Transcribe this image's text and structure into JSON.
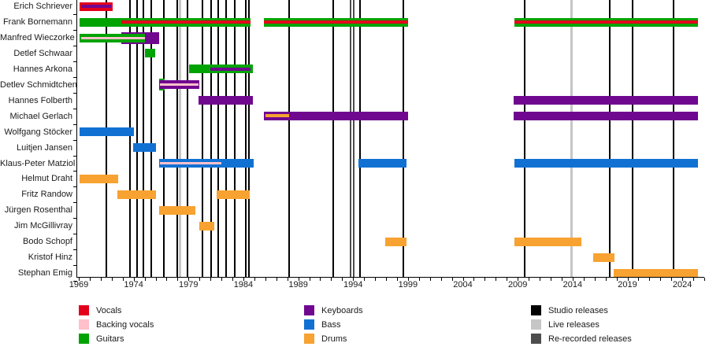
{
  "chart_data": {
    "type": "timeline",
    "subject": "band members timeline",
    "x_axis": {
      "start_year": 1969,
      "end_year": 2026,
      "tick_years": [
        1969,
        1974,
        1979,
        1984,
        1989,
        1994,
        1999,
        2004,
        2009,
        2014,
        2019,
        2024
      ],
      "minor_tick_step": 1
    },
    "colors": {
      "vocals": "#e3001b",
      "backing_vocals": "#ffc0cb",
      "guitars": "#00a302",
      "keyboards": "#70078f",
      "bass": "#1171d3",
      "drums": "#f7a231",
      "studio": "#000000",
      "live": "#c6c6c6",
      "rerecorded": "#4d4d4d"
    },
    "members": [
      {
        "name": "Erich Schriever",
        "layers": [
          {
            "role": "vocals",
            "from": 1969.1,
            "to": 1972.1,
            "stripes": [
              {
                "role": "keyboards",
                "from": 1969.2,
                "to": 1971.95
              }
            ]
          }
        ]
      },
      {
        "name": "Frank Bornemann",
        "layers": [
          {
            "role": "guitars",
            "from": 1969.1,
            "to": 1984.65,
            "stripes": [
              {
                "role": "vocals",
                "from": 1972.9,
                "to": 1984.65
              }
            ]
          },
          {
            "role": "guitars",
            "from": 1985.9,
            "to": 1999.0,
            "stripes": [
              {
                "role": "vocals",
                "from": 1985.9,
                "to": 1999.0
              }
            ]
          },
          {
            "role": "guitars",
            "from": 2008.7,
            "to": 2025.4,
            "stripes": [
              {
                "role": "vocals",
                "from": 2008.7,
                "to": 2025.4
              }
            ]
          }
        ]
      },
      {
        "name": "Manfred Wieczorke",
        "layers": [
          {
            "role": "keyboards",
            "from": 1972.9,
            "to": 1976.35,
            "tall": true
          },
          {
            "role": "guitars",
            "from": 1969.1,
            "to": 1975.05,
            "stripes": [
              {
                "role": "backing_vocals",
                "from": 1969.2,
                "to": 1975.0
              }
            ]
          }
        ]
      },
      {
        "name": "Detlef Schwaar",
        "layers": [
          {
            "role": "guitars",
            "from": 1975.05,
            "to": 1976.0
          }
        ]
      },
      {
        "name": "Hannes Arkona",
        "layers": [
          {
            "role": "guitars",
            "from": 1979.05,
            "to": 1984.85,
            "stripes": [
              {
                "role": "keyboards",
                "from": 1981.0,
                "to": 1984.65
              }
            ]
          }
        ]
      },
      {
        "name": "Detlev Schmidtchen",
        "layers": [
          {
            "role": "guitars",
            "from": 1976.3,
            "to": 1976.85,
            "tall": true
          },
          {
            "role": "keyboards",
            "from": 1976.3,
            "to": 1979.95,
            "stripes": [
              {
                "role": "backing_vocals",
                "from": 1976.4,
                "to": 1979.9
              }
            ]
          }
        ]
      },
      {
        "name": "Hannes Folberth",
        "layers": [
          {
            "role": "keyboards",
            "from": 1979.9,
            "to": 1984.85
          },
          {
            "role": "keyboards",
            "from": 2008.65,
            "to": 2025.45
          }
        ]
      },
      {
        "name": "Michael Gerlach",
        "layers": [
          {
            "role": "keyboards",
            "from": 1985.9,
            "to": 1999.0,
            "stripes": [
              {
                "role": "drums",
                "from": 1986.0,
                "to": 1988.2,
                "dy": -1
              }
            ]
          },
          {
            "role": "keyboards",
            "from": 2008.65,
            "to": 2025.45
          }
        ]
      },
      {
        "name": "Wolfgang Stöcker",
        "layers": [
          {
            "role": "bass",
            "from": 1969.1,
            "to": 1974.05
          }
        ]
      },
      {
        "name": "Luitjen Jansen",
        "layers": [
          {
            "role": "bass",
            "from": 1973.95,
            "to": 1976.0
          }
        ]
      },
      {
        "name": "Klaus-Peter Matziol",
        "layers": [
          {
            "role": "bass",
            "from": 1976.3,
            "to": 1984.95,
            "stripes": [
              {
                "role": "backing_vocals",
                "from": 1976.4,
                "to": 1982.0
              }
            ]
          },
          {
            "role": "bass",
            "from": 1994.5,
            "to": 1998.85
          },
          {
            "role": "bass",
            "from": 2008.7,
            "to": 2025.45
          }
        ]
      },
      {
        "name": "Helmut Draht",
        "layers": [
          {
            "role": "drums",
            "from": 1969.1,
            "to": 1972.6
          }
        ]
      },
      {
        "name": "Fritz Randow",
        "layers": [
          {
            "role": "drums",
            "from": 1972.5,
            "to": 1976.0
          },
          {
            "role": "drums",
            "from": 1981.55,
            "to": 1984.6
          }
        ]
      },
      {
        "name": "Jürgen Rosenthal",
        "layers": [
          {
            "role": "drums",
            "from": 1976.3,
            "to": 1979.65
          }
        ]
      },
      {
        "name": "Jim McGillivray",
        "layers": [
          {
            "role": "drums",
            "from": 1980.0,
            "to": 1981.35
          }
        ]
      },
      {
        "name": "Bodo Schopf",
        "layers": [
          {
            "role": "drums",
            "from": 1996.95,
            "to": 1998.85
          },
          {
            "role": "drums",
            "from": 2008.7,
            "to": 2014.8
          }
        ]
      },
      {
        "name": "Kristof Hinz",
        "layers": [
          {
            "role": "drums",
            "from": 2015.85,
            "to": 2017.8
          }
        ]
      },
      {
        "name": "Stephan Emig",
        "layers": [
          {
            "role": "drums",
            "from": 2017.75,
            "to": 2025.45
          }
        ]
      }
    ],
    "releases": {
      "studio": [
        1971.5,
        1973.7,
        1974.3,
        1974.9,
        1975.6,
        1976.75,
        1977.95,
        1978.9,
        1980.3,
        1981.05,
        1981.7,
        1982.4,
        1983.2,
        1984.2,
        1984.5,
        1988.2,
        1992.2,
        1994.6,
        1998.6,
        2009.6,
        2017.4,
        2019.5,
        2023.2
      ],
      "live": [
        1978.25,
        2013.9
      ],
      "rerecorded": [
        1993.8,
        1994.05
      ]
    }
  },
  "legend": {
    "columns": [
      {
        "items": [
          {
            "label": "Vocals",
            "color_key": "vocals"
          },
          {
            "label": "Backing vocals",
            "color_key": "backing_vocals"
          },
          {
            "label": "Guitars",
            "color_key": "guitars"
          }
        ]
      },
      {
        "items": [
          {
            "label": "Keyboards",
            "color_key": "keyboards"
          },
          {
            "label": "Bass",
            "color_key": "bass"
          },
          {
            "label": "Drums",
            "color_key": "drums"
          }
        ]
      },
      {
        "items": [
          {
            "label": "Studio releases",
            "color_key": "studio"
          },
          {
            "label": "Live releases",
            "color_key": "live"
          },
          {
            "label": "Re-recorded releases",
            "color_key": "rerecorded"
          }
        ]
      }
    ]
  }
}
